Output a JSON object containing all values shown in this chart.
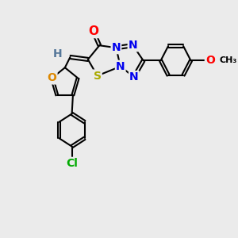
{
  "bg_color": "#ebebeb",
  "bond_color": "#000000",
  "bond_width": 1.5,
  "atoms": {
    "S": {
      "color": "#aaaa00"
    },
    "O": {
      "color": "#ff0000"
    },
    "O_furan": {
      "color": "#dd8800"
    },
    "N": {
      "color": "#0000ee"
    },
    "Cl": {
      "color": "#00aa00"
    },
    "H": {
      "color": "#557799"
    }
  }
}
